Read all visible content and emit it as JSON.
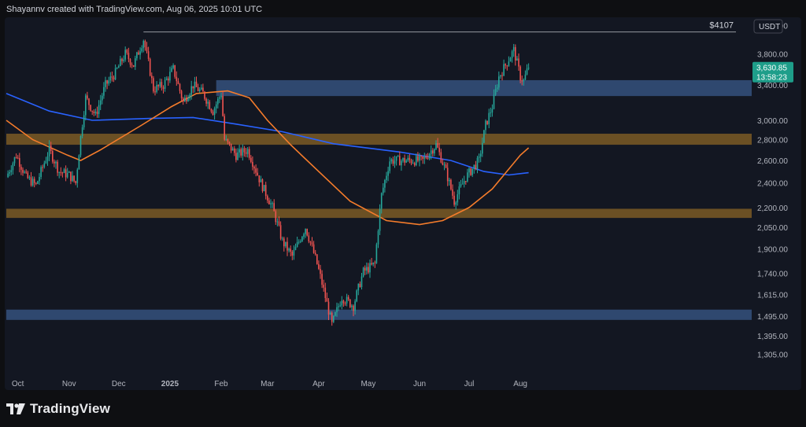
{
  "header": {
    "text": "Shayannv created with TradingView.com, Aug 06, 2025 10:01 UTC"
  },
  "brand": {
    "name": "TradingView"
  },
  "colors": {
    "background": "#131722",
    "up": "#26a69a",
    "down": "#ef5350",
    "ma_fast": "#f57c2b",
    "ma_slow": "#2962ff",
    "supply_zone": "#3a5a8a",
    "demand_zone": "#8a6426",
    "price_badge": "#1e9e8a"
  },
  "chart_data": {
    "type": "line",
    "title": "",
    "y_scale": "log",
    "currency": "USDT",
    "ylim": [
      1250,
      4400
    ],
    "y_ticks": [
      "4,200.00",
      "3,800.00",
      "3,400.00",
      "3,000.00",
      "2,800.00",
      "2,600.00",
      "2,400.00",
      "2,200.00",
      "2,050.00",
      "1,900.00",
      "1,740.00",
      "1,615.00",
      "1,495.00",
      "1,395.00",
      "1,305.00"
    ],
    "x_ticks": [
      "Oct",
      "Nov",
      "Dec",
      "2025",
      "Feb",
      "Mar",
      "Apr",
      "May",
      "Jun",
      "Jul",
      "Aug"
    ],
    "price_path": [
      [
        "2024-09-24",
        2450
      ],
      [
        "2024-09-30",
        2650
      ],
      [
        "2024-10-06",
        2450
      ],
      [
        "2024-10-12",
        2380
      ],
      [
        "2024-10-20",
        2700
      ],
      [
        "2024-10-26",
        2500
      ],
      [
        "2024-11-01",
        2470
      ],
      [
        "2024-11-05",
        2400
      ],
      [
        "2024-11-11",
        3250
      ],
      [
        "2024-11-17",
        3050
      ],
      [
        "2024-11-23",
        3400
      ],
      [
        "2024-11-29",
        3550
      ],
      [
        "2024-12-05",
        3800
      ],
      [
        "2024-12-10",
        3650
      ],
      [
        "2024-12-16",
        4000
      ],
      [
        "2024-12-22",
        3350
      ],
      [
        "2024-12-28",
        3400
      ],
      [
        "2025-01-03",
        3600
      ],
      [
        "2025-01-09",
        3200
      ],
      [
        "2025-01-15",
        3400
      ],
      [
        "2025-01-21",
        3300
      ],
      [
        "2025-01-27",
        3100
      ],
      [
        "2025-02-01",
        3300
      ],
      [
        "2025-02-03",
        2800
      ],
      [
        "2025-02-10",
        2650
      ],
      [
        "2025-02-17",
        2700
      ],
      [
        "2025-02-25",
        2400
      ],
      [
        "2025-03-04",
        2200
      ],
      [
        "2025-03-10",
        1950
      ],
      [
        "2025-03-16",
        1850
      ],
      [
        "2025-03-24",
        2050
      ],
      [
        "2025-03-31",
        1800
      ],
      [
        "2025-04-05",
        1600
      ],
      [
        "2025-04-09",
        1450
      ],
      [
        "2025-04-15",
        1600
      ],
      [
        "2025-04-22",
        1550
      ],
      [
        "2025-04-28",
        1750
      ],
      [
        "2025-05-05",
        1800
      ],
      [
        "2025-05-09",
        2300
      ],
      [
        "2025-05-14",
        2600
      ],
      [
        "2025-05-24",
        2600
      ],
      [
        "2025-06-03",
        2600
      ],
      [
        "2025-06-11",
        2750
      ],
      [
        "2025-06-17",
        2500
      ],
      [
        "2025-06-22",
        2250
      ],
      [
        "2025-06-29",
        2450
      ],
      [
        "2025-07-07",
        2600
      ],
      [
        "2025-07-11",
        2950
      ],
      [
        "2025-07-15",
        3150
      ],
      [
        "2025-07-19",
        3500
      ],
      [
        "2025-07-23",
        3650
      ],
      [
        "2025-07-28",
        3850
      ],
      [
        "2025-08-01",
        3500
      ],
      [
        "2025-08-03",
        3450
      ],
      [
        "2025-08-06",
        3630.85
      ]
    ],
    "ma_fast": [
      [
        "2024-09-24",
        3000
      ],
      [
        "2024-10-10",
        2800
      ],
      [
        "2024-10-31",
        2650
      ],
      [
        "2024-11-08",
        2600
      ],
      [
        "2024-11-20",
        2700
      ],
      [
        "2024-12-15",
        2950
      ],
      [
        "2025-01-02",
        3150
      ],
      [
        "2025-01-17",
        3300
      ],
      [
        "2025-02-05",
        3330
      ],
      [
        "2025-02-18",
        3250
      ],
      [
        "2025-03-01",
        3000
      ],
      [
        "2025-03-15",
        2750
      ],
      [
        "2025-04-01",
        2500
      ],
      [
        "2025-04-20",
        2250
      ],
      [
        "2025-05-12",
        2100
      ],
      [
        "2025-06-01",
        2070
      ],
      [
        "2025-06-15",
        2100
      ],
      [
        "2025-07-01",
        2200
      ],
      [
        "2025-07-15",
        2350
      ],
      [
        "2025-08-01",
        2650
      ],
      [
        "2025-08-06",
        2720
      ]
    ],
    "ma_slow": [
      [
        "2024-09-24",
        3300
      ],
      [
        "2024-10-20",
        3100
      ],
      [
        "2024-11-15",
        3000
      ],
      [
        "2024-12-20",
        3020
      ],
      [
        "2025-01-15",
        3030
      ],
      [
        "2025-02-10",
        2960
      ],
      [
        "2025-03-10",
        2880
      ],
      [
        "2025-04-10",
        2760
      ],
      [
        "2025-05-20",
        2680
      ],
      [
        "2025-06-20",
        2600
      ],
      [
        "2025-07-10",
        2500
      ],
      [
        "2025-07-25",
        2470
      ],
      [
        "2025-08-06",
        2490
      ]
    ],
    "zones": [
      {
        "kind": "supply",
        "from": "2025-01-29",
        "low": 3270,
        "high": 3460
      },
      {
        "kind": "demand",
        "from": "2024-09-24",
        "low": 2750,
        "high": 2860
      },
      {
        "kind": "demand",
        "from": "2024-09-24",
        "low": 2120,
        "high": 2190
      },
      {
        "kind": "supply",
        "from": "2024-09-24",
        "low": 1475,
        "high": 1530
      }
    ],
    "ath_line": {
      "from": "2024-12-16",
      "value": 4107,
      "label": "$4107"
    },
    "last_price": {
      "price": "3,630.85",
      "countdown": "13:58:23"
    }
  }
}
